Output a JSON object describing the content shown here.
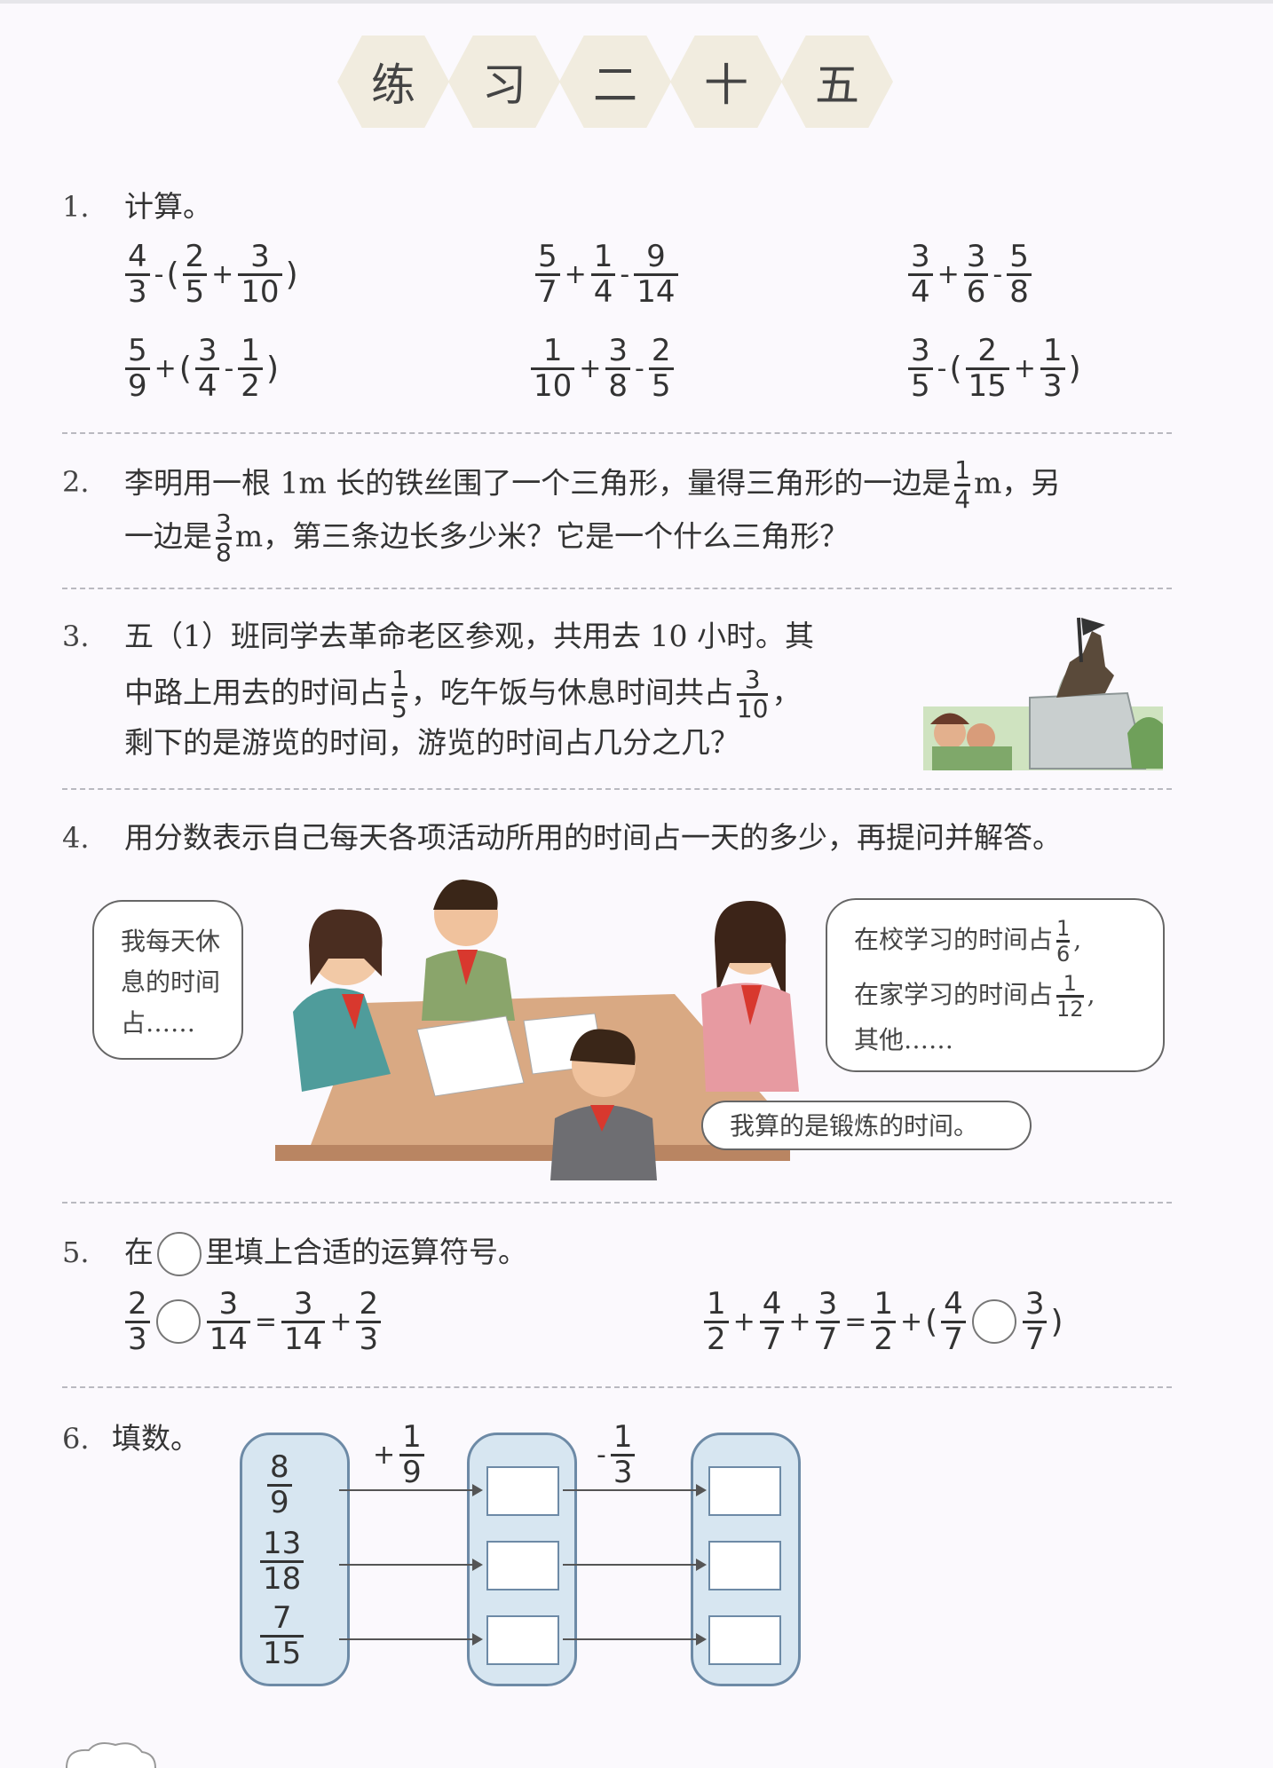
{
  "title": [
    "练",
    "习",
    "二",
    "十",
    "五"
  ],
  "q1": {
    "num": "1.",
    "label": "计算。",
    "exprs": [
      {
        "items": [
          {
            "f": [
              "4",
              "3"
            ]
          },
          {
            "o": "-"
          },
          {
            "p": "("
          },
          {
            "f": [
              "2",
              "5"
            ]
          },
          {
            "o": "+"
          },
          {
            "f": [
              "3",
              "10"
            ]
          },
          {
            "p": ")"
          }
        ]
      },
      {
        "items": [
          {
            "f": [
              "5",
              "7"
            ]
          },
          {
            "o": "+"
          },
          {
            "f": [
              "1",
              "4"
            ]
          },
          {
            "o": "-"
          },
          {
            "f": [
              "9",
              "14"
            ]
          }
        ]
      },
      {
        "items": [
          {
            "f": [
              "3",
              "4"
            ]
          },
          {
            "o": "+"
          },
          {
            "f": [
              "3",
              "6"
            ]
          },
          {
            "o": "-"
          },
          {
            "f": [
              "5",
              "8"
            ]
          }
        ]
      },
      {
        "items": [
          {
            "f": [
              "5",
              "9"
            ]
          },
          {
            "o": "+"
          },
          {
            "p": "("
          },
          {
            "f": [
              "3",
              "4"
            ]
          },
          {
            "o": "-"
          },
          {
            "f": [
              "1",
              "2"
            ]
          },
          {
            "p": ")"
          }
        ]
      },
      {
        "items": [
          {
            "f": [
              "1",
              "10"
            ]
          },
          {
            "o": "+"
          },
          {
            "f": [
              "3",
              "8"
            ]
          },
          {
            "o": "-"
          },
          {
            "f": [
              "2",
              "5"
            ]
          }
        ]
      },
      {
        "items": [
          {
            "f": [
              "3",
              "5"
            ]
          },
          {
            "o": "-"
          },
          {
            "p": "("
          },
          {
            "f": [
              "2",
              "15"
            ]
          },
          {
            "o": "+"
          },
          {
            "f": [
              "1",
              "3"
            ]
          },
          {
            "p": ")"
          }
        ]
      }
    ]
  },
  "q2": {
    "num": "2.",
    "line1_a": "李明用一根 1m 长的铁丝围了一个三角形，量得三角形的一边是",
    "f1": [
      "1",
      "4"
    ],
    "line1_b": "m，另",
    "line2_a": "一边是",
    "f2": [
      "3",
      "8"
    ],
    "line2_b": "m，第三条边长多少米？它是一个什么三角形？"
  },
  "q3": {
    "num": "3.",
    "line1": "五（1）班同学去革命老区参观，共用去 10 小时。其",
    "line2_a": "中路上用去的时间占",
    "f1": [
      "1",
      "5"
    ],
    "line2_b": "，吃午饭与休息时间共占",
    "f2": [
      "3",
      "10"
    ],
    "line2_c": "，",
    "line3": "剩下的是游览的时间，游览的时间占几分之几？"
  },
  "q4": {
    "num": "4.",
    "text": "用分数表示自己每天各项活动所用的时间占一天的多少，再提问并解答。",
    "bubble_left": [
      "我每天休",
      "息的时间",
      "占……"
    ],
    "bubble_right_a": "在校学习的时间占",
    "bubble_right_f1": [
      "1",
      "6"
    ],
    "bubble_right_b": "在家学习的时间占",
    "bubble_right_f2": [
      "1",
      "12"
    ],
    "bubble_right_c": "其他……",
    "bubble_bottom": "我算的是锻炼的时间。"
  },
  "q5": {
    "num": "5.",
    "label_a": "在",
    "label_b": "里填上合适的运算符号。",
    "expr_left": [
      {
        "f": [
          "2",
          "3"
        ]
      },
      {
        "c": 1
      },
      {
        "f": [
          "3",
          "14"
        ]
      },
      {
        "o": "="
      },
      {
        "f": [
          "3",
          "14"
        ]
      },
      {
        "o": "+"
      },
      {
        "f": [
          "2",
          "3"
        ]
      }
    ],
    "expr_right": [
      {
        "f": [
          "1",
          "2"
        ]
      },
      {
        "o": "+"
      },
      {
        "f": [
          "4",
          "7"
        ]
      },
      {
        "o": "+"
      },
      {
        "f": [
          "3",
          "7"
        ]
      },
      {
        "o": "="
      },
      {
        "f": [
          "1",
          "2"
        ]
      },
      {
        "o": "+"
      },
      {
        "p": "("
      },
      {
        "f": [
          "4",
          "7"
        ]
      },
      {
        "c": 1
      },
      {
        "f": [
          "3",
          "7"
        ]
      },
      {
        "p": ")"
      }
    ]
  },
  "q6": {
    "num": "6.",
    "label": "填数。",
    "inputs": [
      [
        "8",
        "9"
      ],
      [
        "13",
        "18"
      ],
      [
        "7",
        "15"
      ]
    ],
    "op1_sign": "+",
    "op1_f": [
      "1",
      "9"
    ],
    "op2_sign": "-",
    "op2_f": [
      "1",
      "3"
    ]
  }
}
